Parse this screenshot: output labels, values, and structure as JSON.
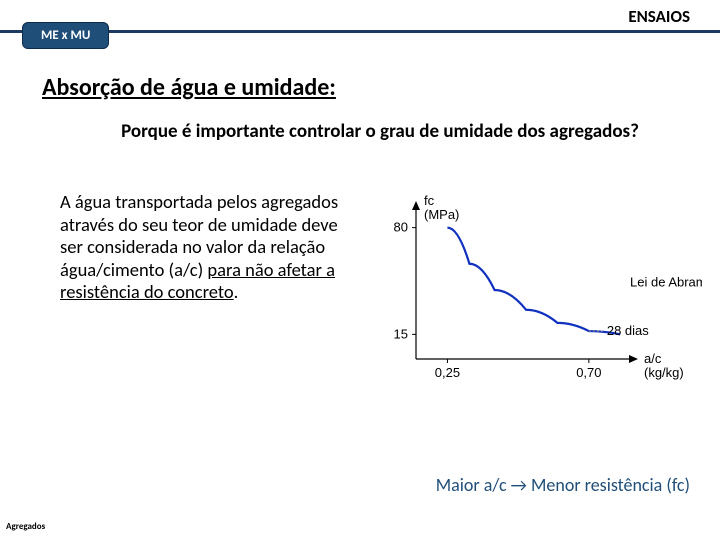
{
  "header": {
    "title": "ENSAIOS",
    "tab": "ME x MU",
    "line_color": "#1f3a60",
    "tab_bg": "#1f4e79"
  },
  "section_title": "Absorção de água e umidade:",
  "question": "Porque é importante controlar o grau de umidade dos agregados?",
  "body": {
    "pre": "A água transportada pelos agregados através do seu teor de umidade deve ser considerada no valor da relação água/cimento (a/c) ",
    "underlined": "para não afetar a resistência do concreto",
    "post": "."
  },
  "chart": {
    "type": "line",
    "y_label_top": "fc",
    "y_label_unit": "(MPa)",
    "x_label": "a/c",
    "x_label_unit": "(kg/kg)",
    "legend": "Lei de Abrams",
    "note": "28 dias",
    "y_ticks": [
      80,
      15
    ],
    "x_ticks": [
      0.25,
      0.7
    ],
    "x_tick_labels": [
      "0,25",
      "0,70"
    ],
    "xlim": [
      0.15,
      0.85
    ],
    "ylim": [
      0,
      95
    ],
    "line_color": "#1030c0",
    "line_width": 2.2,
    "axis_color": "#000000",
    "background": "#ffffff",
    "points": [
      {
        "x": 0.25,
        "y": 80
      },
      {
        "x": 0.32,
        "y": 58
      },
      {
        "x": 0.4,
        "y": 42
      },
      {
        "x": 0.5,
        "y": 30
      },
      {
        "x": 0.6,
        "y": 22
      },
      {
        "x": 0.7,
        "y": 17
      },
      {
        "x": 0.8,
        "y": 15
      }
    ]
  },
  "caption": "Maior a/c → Menor resistência (fc)",
  "footer": "Agregados"
}
